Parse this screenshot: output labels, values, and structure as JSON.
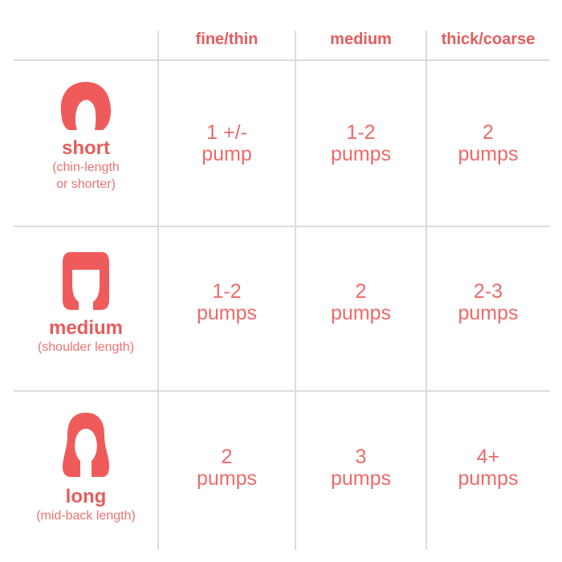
{
  "columns": [
    "fine/thin",
    "medium",
    "thick/coarse"
  ],
  "rows": [
    {
      "label": "short",
      "sub": [
        "(chin-length",
        "or shorter)"
      ],
      "icon": "short-hair-icon",
      "cells": [
        [
          "1 +/-",
          "pump"
        ],
        [
          "1-2",
          "pumps"
        ],
        [
          "2",
          "pumps"
        ]
      ]
    },
    {
      "label": "medium",
      "sub": [
        "(shoulder length)"
      ],
      "icon": "medium-hair-icon",
      "cells": [
        [
          "1-2",
          "pumps"
        ],
        [
          "2",
          "pumps"
        ],
        [
          "2-3",
          "pumps"
        ]
      ]
    },
    {
      "label": "long",
      "sub": [
        "(mid-back length)"
      ],
      "icon": "long-hair-icon",
      "cells": [
        [
          "2",
          "pumps"
        ],
        [
          "3",
          "pumps"
        ],
        [
          "4+",
          "pumps"
        ]
      ]
    }
  ],
  "colors": {
    "accent": "#ec6a6a",
    "icon": "#ef5b5b",
    "grid": "#dcdcdc"
  }
}
